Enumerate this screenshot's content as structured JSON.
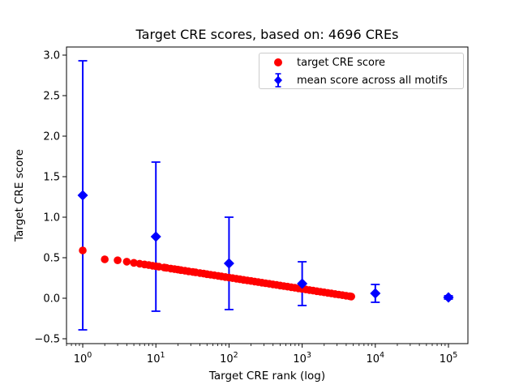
{
  "chart_data": {
    "type": "scatter",
    "title": "Target CRE scores, based on: 4696 CREs",
    "xlabel": "Target CRE rank (log)",
    "ylabel": "Target CRE score",
    "x_scale": "log10",
    "xlim_log10": [
      -0.222,
      5.266
    ],
    "ylim": [
      -0.56,
      3.1
    ],
    "x_major_tick_exponents": [
      0,
      1,
      2,
      3,
      4,
      5
    ],
    "y_ticks": [
      -0.5,
      0.0,
      0.5,
      1.0,
      1.5,
      2.0,
      2.5,
      3.0
    ],
    "grid": false,
    "colors": {
      "red": "#ff0000",
      "blue": "#0000ff",
      "axis": "#000000",
      "legend_border": "#cccccc"
    },
    "legend": {
      "position": "upper-right",
      "entries": [
        {
          "label": "target CRE score",
          "marker": "circle",
          "color": "#ff0000"
        },
        {
          "label": "mean score across all motifs",
          "marker": "diamond-errorbar",
          "color": "#0000ff"
        }
      ]
    },
    "series": [
      {
        "name": "target CRE score",
        "marker": "circle",
        "color": "#ff0000",
        "points": [
          [
            1,
            0.59
          ],
          [
            2,
            0.48
          ],
          [
            3,
            0.468
          ],
          [
            4,
            0.451
          ],
          [
            5,
            0.437
          ],
          [
            6,
            0.426
          ],
          [
            7,
            0.417
          ],
          [
            8,
            0.409
          ],
          [
            9,
            0.401
          ],
          [
            10,
            0.395
          ],
          [
            11,
            0.389
          ],
          [
            13,
            0.379
          ],
          [
            14,
            0.375
          ],
          [
            16,
            0.366
          ],
          [
            18,
            0.359
          ],
          [
            20,
            0.353
          ],
          [
            22,
            0.347
          ],
          [
            25,
            0.339
          ],
          [
            28,
            0.332
          ],
          [
            32,
            0.324
          ],
          [
            35,
            0.319
          ],
          [
            40,
            0.311
          ],
          [
            45,
            0.304
          ],
          [
            50,
            0.297
          ],
          [
            56,
            0.29
          ],
          [
            63,
            0.283
          ],
          [
            71,
            0.276
          ],
          [
            79,
            0.269
          ],
          [
            89,
            0.262
          ],
          [
            100,
            0.255
          ],
          [
            112,
            0.248
          ],
          [
            126,
            0.241
          ],
          [
            141,
            0.234
          ],
          [
            158,
            0.227
          ],
          [
            178,
            0.22
          ],
          [
            200,
            0.213
          ],
          [
            224,
            0.206
          ],
          [
            251,
            0.199
          ],
          [
            282,
            0.192
          ],
          [
            316,
            0.185
          ],
          [
            355,
            0.178
          ],
          [
            398,
            0.171
          ],
          [
            447,
            0.164
          ],
          [
            501,
            0.157
          ],
          [
            562,
            0.15
          ],
          [
            631,
            0.143
          ],
          [
            708,
            0.136
          ],
          [
            794,
            0.129
          ],
          [
            891,
            0.122
          ],
          [
            1000,
            0.115
          ],
          [
            1122,
            0.108
          ],
          [
            1259,
            0.101
          ],
          [
            1413,
            0.094
          ],
          [
            1585,
            0.087
          ],
          [
            1778,
            0.08
          ],
          [
            1995,
            0.073
          ],
          [
            2239,
            0.066
          ],
          [
            2512,
            0.059
          ],
          [
            2818,
            0.052
          ],
          [
            3162,
            0.045
          ],
          [
            3548,
            0.038
          ],
          [
            3981,
            0.031
          ],
          [
            4467,
            0.024
          ],
          [
            4696,
            0.021
          ]
        ]
      },
      {
        "name": "mean score across all motifs",
        "marker": "diamond",
        "color": "#0000ff",
        "errorbars": true,
        "points": [
          {
            "rank": 1,
            "mean": 1.27,
            "std": 1.66
          },
          {
            "rank": 10,
            "mean": 0.76,
            "std": 0.92
          },
          {
            "rank": 100,
            "mean": 0.43,
            "std": 0.57
          },
          {
            "rank": 1000,
            "mean": 0.18,
            "std": 0.27
          },
          {
            "rank": 10000,
            "mean": 0.06,
            "std": 0.11
          },
          {
            "rank": 100000,
            "mean": 0.01,
            "std": 0.02
          }
        ]
      }
    ]
  }
}
